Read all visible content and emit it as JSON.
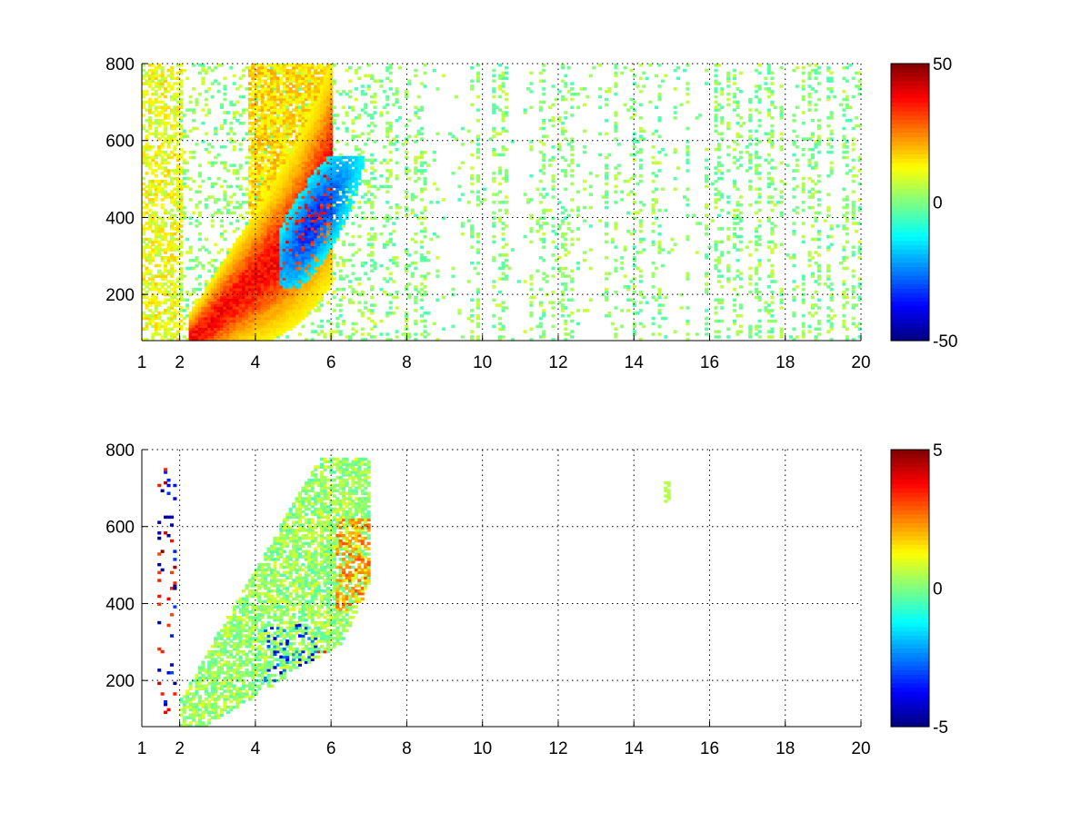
{
  "chart_data": [
    {
      "type": "heatmap",
      "x_ticks": [
        1,
        2,
        4,
        6,
        8,
        10,
        12,
        14,
        16,
        18,
        20
      ],
      "x_tick_labels": [
        "1",
        "2",
        "4",
        "6",
        "8",
        "10",
        "12",
        "14",
        "16",
        "18",
        "20"
      ],
      "xlim": [
        1,
        20
      ],
      "y_ticks": [
        200,
        400,
        600,
        800
      ],
      "y_tick_labels": [
        "200",
        "400",
        "600",
        "800"
      ],
      "ylim": [
        80,
        800
      ],
      "grid": true,
      "colormap": "jet",
      "clim": [
        -50,
        50
      ],
      "colorbar_ticks": [
        50,
        0,
        -50
      ],
      "colorbar_tick_labels": [
        "50",
        "0",
        "-50"
      ],
      "features": [
        {
          "kind": "ridge",
          "description_points": [
            [
              2.5,
              100
            ],
            [
              3.5,
              200
            ],
            [
              4.3,
              300
            ],
            [
              5.0,
              380
            ],
            [
              5.5,
              480
            ],
            [
              5.7,
              600
            ]
          ],
          "value": 38
        },
        {
          "kind": "negative-band",
          "description_points": [
            [
              4.8,
              260
            ],
            [
              5.5,
              320
            ],
            [
              6.2,
              400
            ],
            [
              6.6,
              450
            ]
          ],
          "value": -32
        },
        {
          "kind": "noise-columns",
          "x_range": [
            7.5,
            20
          ],
          "value_range": [
            -6,
            8
          ]
        }
      ]
    },
    {
      "type": "heatmap",
      "x_ticks": [
        1,
        2,
        4,
        6,
        8,
        10,
        12,
        14,
        16,
        18,
        20
      ],
      "x_tick_labels": [
        "1",
        "2",
        "4",
        "6",
        "8",
        "10",
        "12",
        "14",
        "16",
        "18",
        "20"
      ],
      "xlim": [
        1,
        20
      ],
      "y_ticks": [
        200,
        400,
        600,
        800
      ],
      "y_tick_labels": [
        "200",
        "400",
        "600",
        "800"
      ],
      "ylim": [
        80,
        800
      ],
      "grid": true,
      "colormap": "jet",
      "clim": [
        -5,
        5
      ],
      "colorbar_ticks": [
        5,
        0,
        -5
      ],
      "colorbar_tick_labels": [
        "5",
        "0",
        "-5"
      ],
      "features": [
        {
          "kind": "blob",
          "x_range": [
            2.0,
            7.0
          ],
          "y_range": [
            80,
            780
          ],
          "value_range": [
            -4,
            3
          ]
        },
        {
          "kind": "warm-patch",
          "x_range": [
            6.2,
            7.0
          ],
          "y_range": [
            400,
            600
          ],
          "value": 2.5
        },
        {
          "kind": "sparse-streaks",
          "x_range": [
            1.4,
            1.9
          ],
          "y_range": [
            100,
            770
          ],
          "value_range": [
            -5,
            5
          ]
        },
        {
          "kind": "isolated",
          "x_range": [
            14.8,
            14.95
          ],
          "y_range": [
            660,
            720
          ],
          "value": 0.5
        }
      ]
    }
  ]
}
